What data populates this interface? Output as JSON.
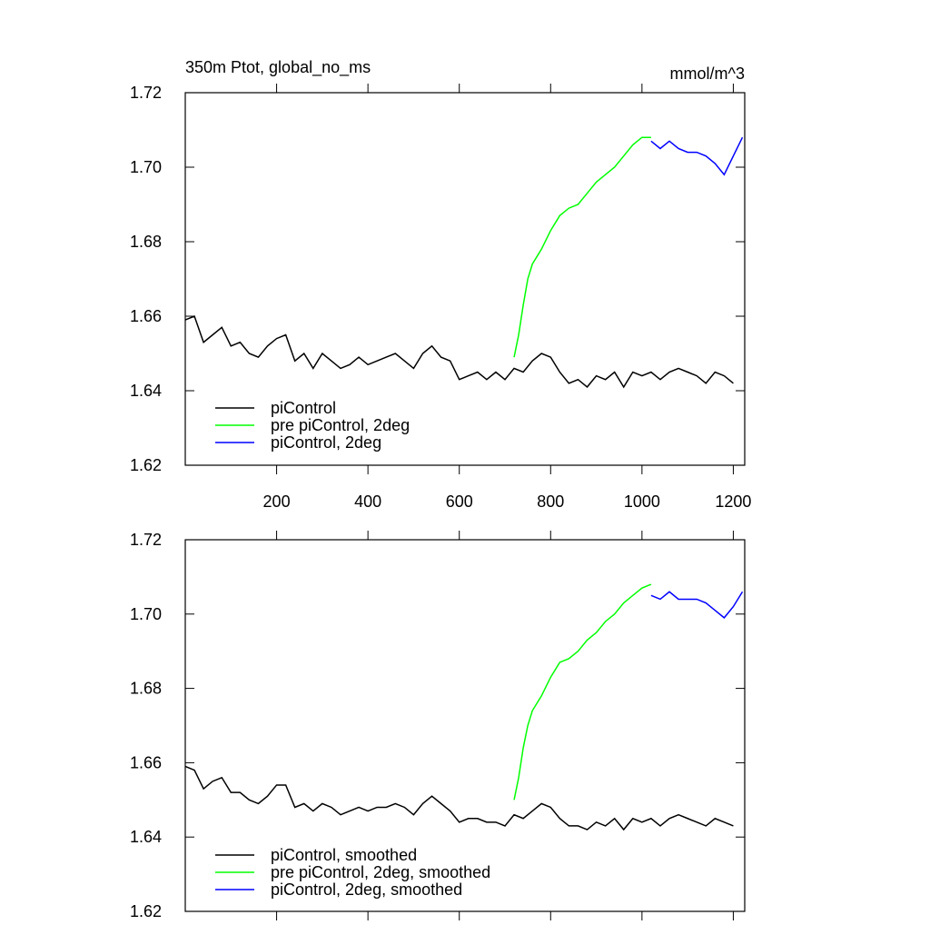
{
  "chart_data": [
    {
      "type": "line",
      "title": "350m Ptot, global_no_ms",
      "subtitle": "mmol/m^3",
      "xlim": [
        0,
        1225
      ],
      "xticks": [
        200,
        400,
        600,
        800,
        1000,
        1200
      ],
      "ylim": [
        1.62,
        1.72
      ],
      "yticks": [
        1.62,
        1.64,
        1.66,
        1.68,
        {
          "value": 1.7,
          "label": "1.70"
        },
        1.72
      ],
      "series": [
        {
          "name": "piControl",
          "color": "#000000",
          "x": [
            0,
            20,
            40,
            60,
            80,
            100,
            120,
            140,
            160,
            180,
            200,
            220,
            240,
            260,
            280,
            300,
            320,
            340,
            360,
            380,
            400,
            420,
            440,
            460,
            480,
            500,
            520,
            540,
            560,
            580,
            600,
            620,
            640,
            660,
            680,
            700,
            720,
            740,
            760,
            780,
            800,
            820,
            840,
            860,
            880,
            900,
            920,
            940,
            960,
            980,
            1000,
            1020,
            1040,
            1060,
            1080,
            1100,
            1120,
            1140,
            1160,
            1180,
            1200
          ],
          "values": [
            1.659,
            1.66,
            1.653,
            1.655,
            1.657,
            1.652,
            1.653,
            1.65,
            1.649,
            1.652,
            1.654,
            1.655,
            1.648,
            1.65,
            1.646,
            1.65,
            1.648,
            1.646,
            1.647,
            1.649,
            1.647,
            1.648,
            1.649,
            1.65,
            1.648,
            1.646,
            1.65,
            1.652,
            1.649,
            1.648,
            1.643,
            1.644,
            1.645,
            1.643,
            1.645,
            1.643,
            1.646,
            1.645,
            1.648,
            1.65,
            1.649,
            1.645,
            1.642,
            1.643,
            1.641,
            1.644,
            1.643,
            1.645,
            1.641,
            1.645,
            1.644,
            1.645,
            1.643,
            1.645,
            1.646,
            1.645,
            1.644,
            1.642,
            1.645,
            1.644,
            1.642
          ]
        },
        {
          "name": "pre piControl, 2deg",
          "color": "#00ff00",
          "x": [
            720,
            730,
            740,
            750,
            760,
            780,
            800,
            820,
            840,
            860,
            880,
            900,
            920,
            940,
            960,
            980,
            1000,
            1020
          ],
          "values": [
            1.649,
            1.655,
            1.663,
            1.67,
            1.674,
            1.678,
            1.683,
            1.687,
            1.689,
            1.69,
            1.693,
            1.696,
            1.698,
            1.7,
            1.703,
            1.706,
            1.708,
            1.708
          ]
        },
        {
          "name": "piControl, 2deg",
          "color": "#0000ff",
          "x": [
            1020,
            1040,
            1060,
            1080,
            1100,
            1120,
            1140,
            1160,
            1180,
            1200,
            1220
          ],
          "values": [
            1.707,
            1.705,
            1.707,
            1.705,
            1.704,
            1.704,
            1.703,
            1.701,
            1.698,
            1.703,
            1.708
          ]
        }
      ]
    },
    {
      "type": "line",
      "xlim": [
        0,
        1225
      ],
      "xticks": [
        200,
        400,
        600,
        800,
        1000,
        1200
      ],
      "ylim": [
        1.62,
        1.72
      ],
      "yticks": [
        1.62,
        1.64,
        1.66,
        1.68,
        {
          "value": 1.7,
          "label": "1.70"
        },
        1.72
      ],
      "series": [
        {
          "name": "piControl, smoothed",
          "color": "#000000",
          "x": [
            0,
            20,
            40,
            60,
            80,
            100,
            120,
            140,
            160,
            180,
            200,
            220,
            240,
            260,
            280,
            300,
            320,
            340,
            360,
            380,
            400,
            420,
            440,
            460,
            480,
            500,
            520,
            540,
            560,
            580,
            600,
            620,
            640,
            660,
            680,
            700,
            720,
            740,
            760,
            780,
            800,
            820,
            840,
            860,
            880,
            900,
            920,
            940,
            960,
            980,
            1000,
            1020,
            1040,
            1060,
            1080,
            1100,
            1120,
            1140,
            1160,
            1180,
            1200
          ],
          "values": [
            1.659,
            1.658,
            1.653,
            1.655,
            1.656,
            1.652,
            1.652,
            1.65,
            1.649,
            1.651,
            1.654,
            1.654,
            1.648,
            1.649,
            1.647,
            1.649,
            1.648,
            1.646,
            1.647,
            1.648,
            1.647,
            1.648,
            1.648,
            1.649,
            1.648,
            1.646,
            1.649,
            1.651,
            1.649,
            1.647,
            1.644,
            1.645,
            1.645,
            1.644,
            1.644,
            1.643,
            1.646,
            1.645,
            1.647,
            1.649,
            1.648,
            1.645,
            1.643,
            1.643,
            1.642,
            1.644,
            1.643,
            1.645,
            1.642,
            1.645,
            1.644,
            1.645,
            1.643,
            1.645,
            1.646,
            1.645,
            1.644,
            1.643,
            1.645,
            1.644,
            1.643
          ]
        },
        {
          "name": "pre piControl, 2deg, smoothed",
          "color": "#00ff00",
          "x": [
            720,
            730,
            740,
            750,
            760,
            780,
            800,
            820,
            840,
            860,
            880,
            900,
            920,
            940,
            960,
            980,
            1000,
            1020
          ],
          "values": [
            1.65,
            1.656,
            1.664,
            1.67,
            1.674,
            1.678,
            1.683,
            1.687,
            1.688,
            1.69,
            1.693,
            1.695,
            1.698,
            1.7,
            1.703,
            1.705,
            1.707,
            1.708
          ]
        },
        {
          "name": "piControl, 2deg, smoothed",
          "color": "#0000ff",
          "x": [
            1020,
            1040,
            1060,
            1080,
            1100,
            1120,
            1140,
            1160,
            1180,
            1200,
            1220
          ],
          "values": [
            1.705,
            1.704,
            1.706,
            1.704,
            1.704,
            1.704,
            1.703,
            1.701,
            1.699,
            1.702,
            1.706
          ]
        }
      ]
    }
  ]
}
